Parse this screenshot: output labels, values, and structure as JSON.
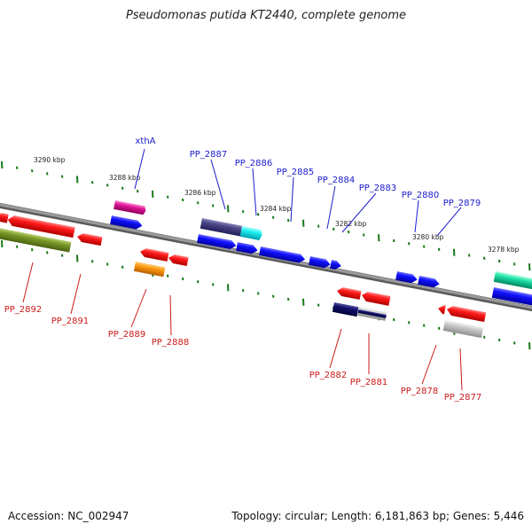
{
  "title": "Pseudomonas putida KT2440, complete genome",
  "footer": {
    "accession": "Accession: NC_002947",
    "summary": "Topology: circular; Length: 6,181,863 bp; Genes: 5,446"
  },
  "colors": {
    "backbone": "#7f7f7f",
    "tick": "#1a7a1a",
    "label_forward": "#1a1acc",
    "label_reverse": "#cc1a1a"
  },
  "ticks": [
    "3290 kbp",
    "3288 kbp",
    "3286 kbp",
    "3284 kbp",
    "3282 kbp",
    "3280 kbp",
    "3278 kbp"
  ],
  "labels_forward": [
    "xthA",
    "PP_2887",
    "PP_2886",
    "PP_2885",
    "PP_2884",
    "PP_2883",
    "PP_2880",
    "PP_2879"
  ],
  "labels_reverse": [
    "PP_2892",
    "PP_2891",
    "PP_2889",
    "PP_2888",
    "PP_2882",
    "PP_2881",
    "PP_2878",
    "PP_2877"
  ]
}
